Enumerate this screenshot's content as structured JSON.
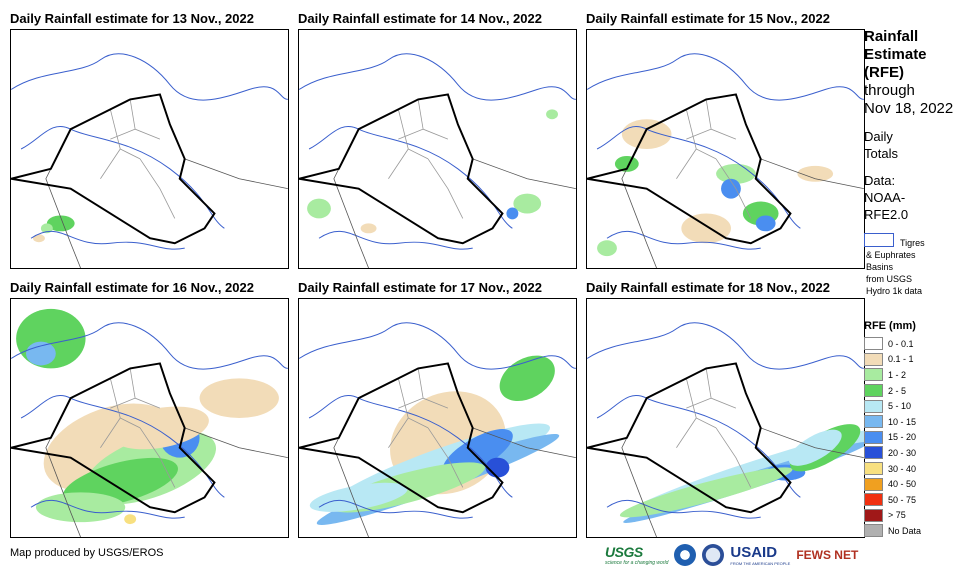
{
  "panels": [
    {
      "title": "Daily Rainfall estimate for 13 Nov., 2022"
    },
    {
      "title": "Daily Rainfall estimate for 14 Nov., 2022"
    },
    {
      "title": "Daily Rainfall estimate for 15 Nov., 2022"
    },
    {
      "title": "Daily Rainfall estimate for 16 Nov., 2022"
    },
    {
      "title": "Daily Rainfall estimate for 17 Nov., 2022"
    },
    {
      "title": "Daily Rainfall estimate for 18 Nov., 2022"
    }
  ],
  "legend": {
    "title_line1": "Rainfall",
    "title_line2": "Estimate",
    "title_line3": "(RFE)",
    "through": "through",
    "date": "Nov 18, 2022",
    "daily_line1": "Daily",
    "daily_line2": "Totals",
    "data_line1": "Data:",
    "data_line2": "NOAA-",
    "data_line3": "RFE2.0",
    "basin_line1": "Tigres",
    "basin_line2": "& Euphrates",
    "basin_line3": "Basins",
    "basin_line4": "from USGS",
    "basin_line5": "Hydro 1k data",
    "rfe_title": "RFE (mm)",
    "classes": [
      {
        "label": "0 - 0.1",
        "color": "#ffffff"
      },
      {
        "label": "0.1 - 1",
        "color": "#f2dcb8"
      },
      {
        "label": "1 - 2",
        "color": "#a8eba0"
      },
      {
        "label": "2 - 5",
        "color": "#5fd35f"
      },
      {
        "label": "5 - 10",
        "color": "#b8e8f4"
      },
      {
        "label": "10 - 15",
        "color": "#78b8f0"
      },
      {
        "label": "15 - 20",
        "color": "#4a8ef0"
      },
      {
        "label": "20 - 30",
        "color": "#2850d8"
      },
      {
        "label": "30 - 40",
        "color": "#f8e080"
      },
      {
        "label": "40 - 50",
        "color": "#f0a020"
      },
      {
        "label": "50 - 75",
        "color": "#f03010"
      },
      {
        "label": "> 75",
        "color": "#a01818"
      },
      {
        "label": "No Data",
        "color": "#b0b0b0"
      }
    ]
  },
  "credit": "Map produced by USGS/EROS",
  "logos": {
    "usgs": "USGS",
    "usgs_tagline": "science for a changing world",
    "usaid": "USAID",
    "usaid_tagline": "FROM THE AMERICAN PEOPLE",
    "fews": "FEWS NET"
  }
}
